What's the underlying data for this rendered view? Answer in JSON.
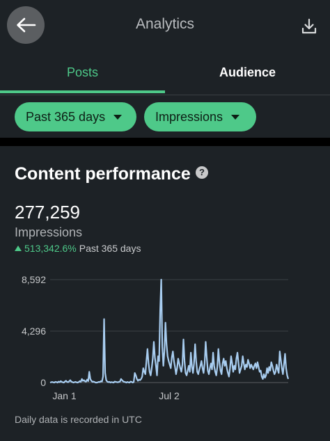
{
  "header": {
    "title": "Analytics",
    "back_icon": "arrow-left-icon",
    "download_icon": "download-icon"
  },
  "tabs": [
    {
      "label": "Posts",
      "active": true
    },
    {
      "label": "Audience",
      "active": false
    }
  ],
  "filters": {
    "range": "Past 365 days",
    "metric": "Impressions"
  },
  "card": {
    "title": "Content performance",
    "help_icon": "question-circle-icon",
    "value": "277,259",
    "metric_label": "Impressions",
    "change": "513,342.6%",
    "change_period": "Past 365 days",
    "footnote": "Daily data is recorded in UTC"
  },
  "colors": {
    "accent": "#4ec989",
    "background": "#1d2226",
    "line": "#a8cdf0"
  },
  "chart_data": {
    "type": "line",
    "y_ticks": [
      "8,592",
      "4,296",
      "0"
    ],
    "ylim": [
      0,
      8592
    ],
    "x_ticks": [
      "Jan 1",
      "Jul 2"
    ],
    "grid": true,
    "series": [
      {
        "values": [
          0,
          30,
          50,
          20,
          0,
          60,
          40,
          0,
          80,
          30,
          120,
          60,
          20,
          0,
          90,
          150,
          60,
          30,
          100,
          200,
          80,
          40,
          0,
          30,
          60,
          20,
          0,
          40,
          120,
          60,
          300,
          150,
          200,
          100,
          80,
          250,
          120,
          900,
          300,
          150,
          60,
          80,
          40,
          0,
          0,
          20,
          60,
          40,
          120,
          80,
          500,
          5300,
          800,
          200,
          80,
          30,
          60,
          0,
          40,
          20,
          0,
          80,
          60,
          40,
          20,
          60,
          80,
          300,
          200,
          100,
          60,
          40,
          0,
          50,
          20,
          0,
          80,
          60,
          0,
          40,
          800,
          600,
          300,
          150,
          250,
          200,
          300,
          500,
          1200,
          900,
          700,
          1800,
          2800,
          1600,
          900,
          600,
          1200,
          2000,
          3400,
          2100,
          1400,
          600,
          2200,
          1800,
          6000,
          8592,
          3000,
          1400,
          2600,
          5000,
          3200,
          2200,
          1800,
          1500,
          1200,
          2100,
          2600,
          1800,
          1300,
          700,
          1200,
          2000,
          1600,
          1200,
          900,
          1500,
          3600,
          1800,
          800,
          600,
          1000,
          1400,
          900,
          2500,
          1300,
          800,
          1600,
          3200,
          1800,
          900,
          700,
          1100,
          1400,
          1800,
          1200,
          800,
          1600,
          3400,
          2100,
          1000,
          700,
          1200,
          1600,
          1100,
          2500,
          1400,
          900,
          600,
          1300,
          2800,
          1700,
          1000,
          700,
          1600,
          2000,
          1400,
          1800,
          1200,
          800,
          500,
          1200,
          2200,
          1600,
          900,
          1400,
          1100,
          2000,
          2500,
          1600,
          800,
          1100,
          1400,
          2200,
          1600,
          1100,
          1500,
          1300,
          1900,
          1600,
          1200,
          1500,
          1300,
          1100,
          1400,
          1600,
          1200,
          1700,
          1300,
          900,
          1000,
          500,
          300,
          700,
          400,
          600,
          1200,
          800,
          1300,
          1000,
          1700,
          1400,
          1000,
          700,
          900,
          1500,
          1100,
          800,
          2600,
          1900,
          1200,
          700,
          1500,
          2400,
          1200,
          600,
          300
        ]
      }
    ]
  }
}
